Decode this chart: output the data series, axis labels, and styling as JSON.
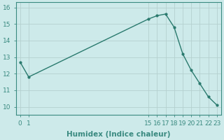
{
  "x": [
    0,
    1,
    15,
    16,
    17,
    18,
    19,
    20,
    21,
    22,
    23
  ],
  "y": [
    12.7,
    11.8,
    15.3,
    15.5,
    15.6,
    14.8,
    13.2,
    12.2,
    11.4,
    10.6,
    10.1
  ],
  "line_color": "#2a7a6e",
  "marker": "o",
  "marker_size": 2.0,
  "line_width": 1.0,
  "xlabel": "Humidex (Indice chaleur)",
  "xlabel_fontsize": 7.5,
  "xlabel_bold": true,
  "xlim": [
    -0.5,
    23.5
  ],
  "ylim": [
    9.5,
    16.3
  ],
  "yticks": [
    10,
    11,
    12,
    13,
    14,
    15,
    16
  ],
  "xticks": [
    0,
    1,
    15,
    16,
    17,
    18,
    19,
    20,
    21,
    22,
    23
  ],
  "background_color": "#cdeaea",
  "grid_color": "#b5d0cf",
  "grid_linewidth": 0.6,
  "tick_fontsize": 6.5,
  "spine_color": "#3a8a80"
}
